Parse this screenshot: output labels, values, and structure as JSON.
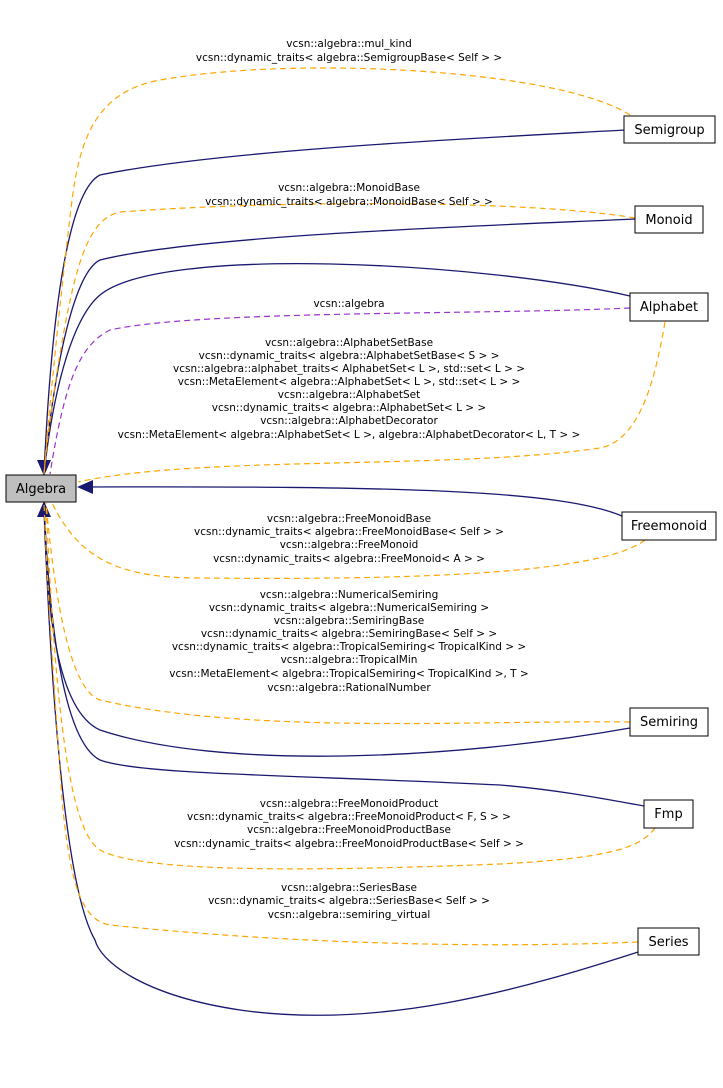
{
  "nodes": {
    "algebra": "Algebra",
    "semigroup": "Semigroup",
    "monoid": "Monoid",
    "alphabet": "Alphabet",
    "freemonoid": "Freemonoid",
    "semiring": "Semiring",
    "fmp": "Fmp",
    "series": "Series"
  },
  "labels": {
    "semigroup": [
      "vcsn::algebra::mul_kind",
      "vcsn::dynamic_traits< algebra::SemigroupBase< Self > >"
    ],
    "monoid": [
      "vcsn::algebra::MonoidBase",
      "vcsn::dynamic_traits< algebra::MonoidBase< Self > >"
    ],
    "alphabet_ns": [
      "vcsn::algebra"
    ],
    "alphabet": [
      "vcsn::algebra::AlphabetSetBase",
      "vcsn::dynamic_traits< algebra::AlphabetSetBase< S > >",
      "vcsn::algebra::alphabet_traits< AlphabetSet< L >, std::set< L > >",
      "vcsn::MetaElement< algebra::AlphabetSet< L >, std::set< L > >",
      "vcsn::algebra::AlphabetSet",
      "vcsn::dynamic_traits< algebra::AlphabetSet< L > >",
      "vcsn::algebra::AlphabetDecorator",
      "vcsn::MetaElement< algebra::AlphabetSet< L >, algebra::AlphabetDecorator< L, T > >"
    ],
    "freemonoid": [
      "vcsn::algebra::FreeMonoidBase",
      "vcsn::dynamic_traits< algebra::FreeMonoidBase< Self > >",
      "vcsn::algebra::FreeMonoid",
      "vcsn::dynamic_traits< algebra::FreeMonoid< A > >"
    ],
    "semiring": [
      "vcsn::algebra::NumericalSemiring",
      "vcsn::dynamic_traits< algebra::NumericalSemiring >",
      "vcsn::algebra::SemiringBase",
      "vcsn::dynamic_traits< algebra::SemiringBase< Self > >",
      "vcsn::dynamic_traits< algebra::TropicalSemiring< TropicalKind > >",
      "vcsn::algebra::TropicalMin",
      "vcsn::MetaElement< algebra::TropicalSemiring< TropicalKind >, T >",
      "vcsn::algebra::RationalNumber"
    ],
    "fmp": [
      "vcsn::algebra::FreeMonoidProduct",
      "vcsn::dynamic_traits< algebra::FreeMonoidProduct< F, S > >",
      "vcsn::algebra::FreeMonoidProductBase",
      "vcsn::dynamic_traits< algebra::FreeMonoidProductBase< Self > >"
    ],
    "series": [
      "vcsn::algebra::SeriesBase",
      "vcsn::dynamic_traits< algebra::SeriesBase< Self > >",
      "vcsn::algebra::semiring_virtual"
    ]
  },
  "colors": {
    "inheritance_edge": "#191970",
    "usage_edge": "#ffa500",
    "namespace_edge": "#9a32cd",
    "root_fill": "#bfbfbf"
  }
}
